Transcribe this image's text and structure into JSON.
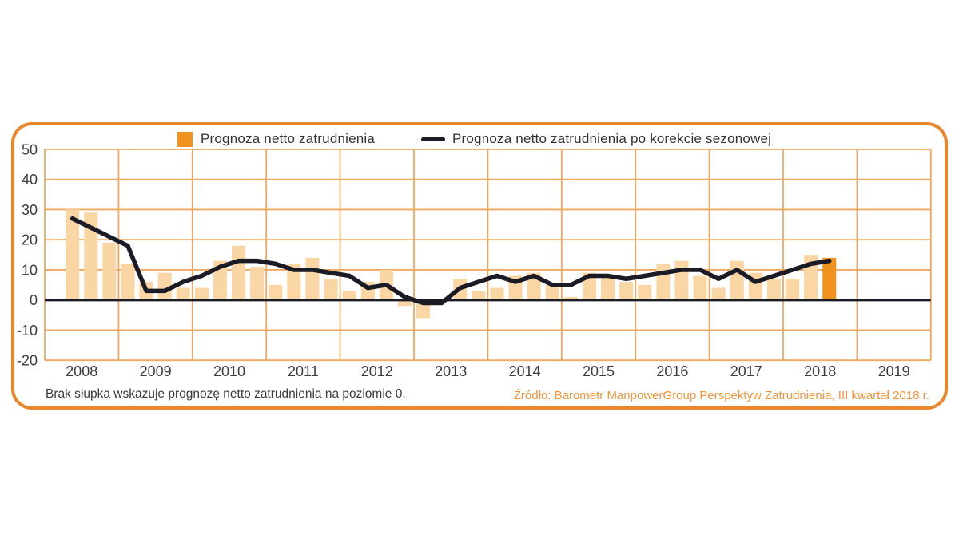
{
  "legend": {
    "bar_label": "Prognoza netto zatrudnienia",
    "line_label": "Prognoza netto zatrudnienia po korekcie sezonowej"
  },
  "footnote": "Brak słupka wskazuje prognozę netto zatrudnienia na poziomie 0.",
  "source": "Źródło: Barometr ManpowerGroup Perspektyw Zatrudnienia, III kwartał 2018 r.",
  "colors": {
    "bar": "#FAD6A4",
    "bar_highlight": "#F0921E",
    "line": "#1B1B26",
    "grid": "#F0A860",
    "zero_axis": "#1B1B26",
    "frame_border": "#E8872B",
    "tick_text": "#3C3C3C",
    "source_text": "#F3943A"
  },
  "chart_data": {
    "type": "bar",
    "note": "bar series with line overlay; quarterly data starting Q2 2008; no bar drawn when value is 0; last bar (Q3 2018) highlighted",
    "x": [
      "Q2 2008",
      "Q3 2008",
      "Q4 2008",
      "Q1 2009",
      "Q2 2009",
      "Q3 2009",
      "Q4 2009",
      "Q1 2010",
      "Q2 2010",
      "Q3 2010",
      "Q4 2010",
      "Q1 2011",
      "Q2 2011",
      "Q3 2011",
      "Q4 2011",
      "Q1 2012",
      "Q2 2012",
      "Q3 2012",
      "Q4 2012",
      "Q1 2013",
      "Q2 2013",
      "Q3 2013",
      "Q4 2013",
      "Q1 2014",
      "Q2 2014",
      "Q3 2014",
      "Q4 2014",
      "Q1 2015",
      "Q2 2015",
      "Q3 2015",
      "Q4 2015",
      "Q1 2016",
      "Q2 2016",
      "Q3 2016",
      "Q4 2016",
      "Q1 2017",
      "Q2 2017",
      "Q3 2017",
      "Q4 2017",
      "Q1 2018",
      "Q2 2018",
      "Q3 2018"
    ],
    "series": [
      {
        "name": "Prognoza netto zatrudnienia",
        "type": "bar",
        "values": [
          30,
          29,
          19,
          12,
          6,
          9,
          4,
          4,
          13,
          18,
          11,
          5,
          12,
          14,
          7,
          3,
          6,
          10,
          -2,
          -6,
          0,
          7,
          3,
          4,
          8,
          9,
          5,
          1,
          9,
          8,
          6,
          5,
          12,
          13,
          8,
          4,
          13,
          9,
          7,
          7,
          15,
          14
        ]
      },
      {
        "name": "Prognoza netto zatrudnienia po korekcie sezonowej",
        "type": "line",
        "values": [
          27,
          24,
          21,
          18,
          3,
          3,
          6,
          8,
          11,
          13,
          13,
          12,
          10,
          10,
          9,
          8,
          4,
          5,
          1,
          -1,
          -1,
          4,
          6,
          8,
          6,
          8,
          5,
          5,
          8,
          8,
          7,
          8,
          9,
          10,
          10,
          7,
          10,
          6,
          8,
          10,
          12,
          13
        ]
      }
    ],
    "highlight_index": 41,
    "year_ticks": [
      "2008",
      "2009",
      "2010",
      "2011",
      "2012",
      "2013",
      "2014",
      "2015",
      "2016",
      "2017",
      "2018",
      "2019"
    ],
    "yticks": [
      50,
      40,
      30,
      20,
      10,
      0,
      -10,
      -20
    ],
    "ylim": [
      -20,
      50
    ],
    "grid": true,
    "legend_position": "top"
  }
}
